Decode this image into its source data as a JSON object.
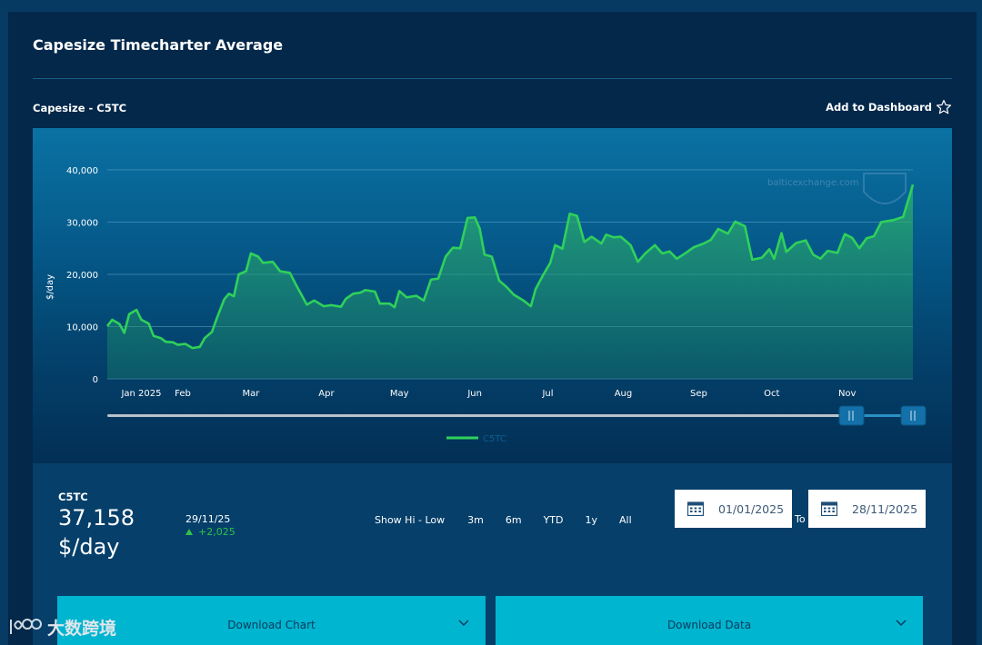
{
  "page": {
    "title": "Capesize Timecharter Average",
    "subtitle": "Capesize - C5TC",
    "add_to_dashboard": "Add to Dashboard"
  },
  "chart_data": {
    "type": "area",
    "ylabel": "$/day",
    "ylim": [
      0,
      40000
    ],
    "yticks": [
      0,
      10000,
      20000,
      30000,
      40000
    ],
    "ytick_labels": [
      "0",
      "10,000",
      "20,000",
      "30,000",
      "40,000"
    ],
    "xlim": [
      "2025-01-01",
      "2025-11-28"
    ],
    "xticks": [
      {
        "date": "2025-01-15",
        "label": "Jan 2025"
      },
      {
        "date": "2025-02-01",
        "label": "Feb"
      },
      {
        "date": "2025-03-01",
        "label": "Mar"
      },
      {
        "date": "2025-04-01",
        "label": "Apr"
      },
      {
        "date": "2025-05-01",
        "label": "May"
      },
      {
        "date": "2025-06-01",
        "label": "Jun"
      },
      {
        "date": "2025-07-01",
        "label": "Jul"
      },
      {
        "date": "2025-08-01",
        "label": "Aug"
      },
      {
        "date": "2025-09-01",
        "label": "Sep"
      },
      {
        "date": "2025-10-01",
        "label": "Oct"
      },
      {
        "date": "2025-11-01",
        "label": "Nov"
      }
    ],
    "grid": true,
    "legend_position": "bottom",
    "series": [
      {
        "name": "C5TC",
        "color": "#2fd15a",
        "points": [
          [
            "2025-01-01",
            10100
          ],
          [
            "2025-01-03",
            11300
          ],
          [
            "2025-01-06",
            10500
          ],
          [
            "2025-01-08",
            8800
          ],
          [
            "2025-01-10",
            12400
          ],
          [
            "2025-01-13",
            13200
          ],
          [
            "2025-01-15",
            11300
          ],
          [
            "2025-01-18",
            10600
          ],
          [
            "2025-01-20",
            8200
          ],
          [
            "2025-01-23",
            7800
          ],
          [
            "2025-01-25",
            7100
          ],
          [
            "2025-01-28",
            7000
          ],
          [
            "2025-01-30",
            6500
          ],
          [
            "2025-02-02",
            6700
          ],
          [
            "2025-02-05",
            5900
          ],
          [
            "2025-02-08",
            6100
          ],
          [
            "2025-02-10",
            7800
          ],
          [
            "2025-02-13",
            9000
          ],
          [
            "2025-02-15",
            11600
          ],
          [
            "2025-02-18",
            15200
          ],
          [
            "2025-02-20",
            16300
          ],
          [
            "2025-02-22",
            15800
          ],
          [
            "2025-02-24",
            20000
          ],
          [
            "2025-02-27",
            20600
          ],
          [
            "2025-03-01",
            24000
          ],
          [
            "2025-03-04",
            23400
          ],
          [
            "2025-03-06",
            22200
          ],
          [
            "2025-03-10",
            22400
          ],
          [
            "2025-03-13",
            20600
          ],
          [
            "2025-03-17",
            20300
          ],
          [
            "2025-03-20",
            17600
          ],
          [
            "2025-03-24",
            14200
          ],
          [
            "2025-03-27",
            15000
          ],
          [
            "2025-03-31",
            13900
          ],
          [
            "2025-04-03",
            14100
          ],
          [
            "2025-04-07",
            13800
          ],
          [
            "2025-04-09",
            15300
          ],
          [
            "2025-04-12",
            16300
          ],
          [
            "2025-04-15",
            16500
          ],
          [
            "2025-04-17",
            17000
          ],
          [
            "2025-04-21",
            16700
          ],
          [
            "2025-04-23",
            14400
          ],
          [
            "2025-04-27",
            14400
          ],
          [
            "2025-04-29",
            13700
          ],
          [
            "2025-05-01",
            16800
          ],
          [
            "2025-05-04",
            15600
          ],
          [
            "2025-05-08",
            15900
          ],
          [
            "2025-05-11",
            15000
          ],
          [
            "2025-05-14",
            19000
          ],
          [
            "2025-05-17",
            19200
          ],
          [
            "2025-05-20",
            23400
          ],
          [
            "2025-05-23",
            25100
          ],
          [
            "2025-05-26",
            25000
          ],
          [
            "2025-05-29",
            30800
          ],
          [
            "2025-06-01",
            30900
          ],
          [
            "2025-06-03",
            28800
          ],
          [
            "2025-06-05",
            23800
          ],
          [
            "2025-06-08",
            23400
          ],
          [
            "2025-06-11",
            18800
          ],
          [
            "2025-06-14",
            17600
          ],
          [
            "2025-06-17",
            16100
          ],
          [
            "2025-06-21",
            15000
          ],
          [
            "2025-06-24",
            13900
          ],
          [
            "2025-06-26",
            17200
          ],
          [
            "2025-06-29",
            19800
          ],
          [
            "2025-07-02",
            22200
          ],
          [
            "2025-07-04",
            25600
          ],
          [
            "2025-07-07",
            24900
          ],
          [
            "2025-07-10",
            31600
          ],
          [
            "2025-07-13",
            31200
          ],
          [
            "2025-07-16",
            26200
          ],
          [
            "2025-07-19",
            27200
          ],
          [
            "2025-07-23",
            25900
          ],
          [
            "2025-07-25",
            27600
          ],
          [
            "2025-07-28",
            27100
          ],
          [
            "2025-07-31",
            27200
          ],
          [
            "2025-08-04",
            25600
          ],
          [
            "2025-08-07",
            22400
          ],
          [
            "2025-08-10",
            24000
          ],
          [
            "2025-08-14",
            25600
          ],
          [
            "2025-08-17",
            24000
          ],
          [
            "2025-08-20",
            24400
          ],
          [
            "2025-08-23",
            23000
          ],
          [
            "2025-08-27",
            24200
          ],
          [
            "2025-08-30",
            25200
          ],
          [
            "2025-09-03",
            25900
          ],
          [
            "2025-09-06",
            26600
          ],
          [
            "2025-09-09",
            28700
          ],
          [
            "2025-09-13",
            27800
          ],
          [
            "2025-09-16",
            30100
          ],
          [
            "2025-09-20",
            29200
          ],
          [
            "2025-09-23",
            22800
          ],
          [
            "2025-09-27",
            23200
          ],
          [
            "2025-09-30",
            24800
          ],
          [
            "2025-10-02",
            23000
          ],
          [
            "2025-10-05",
            27900
          ],
          [
            "2025-10-07",
            24300
          ],
          [
            "2025-10-11",
            26000
          ],
          [
            "2025-10-15",
            26500
          ],
          [
            "2025-10-18",
            23800
          ],
          [
            "2025-10-21",
            23000
          ],
          [
            "2025-10-24",
            24500
          ],
          [
            "2025-10-28",
            24100
          ],
          [
            "2025-10-31",
            27700
          ],
          [
            "2025-11-03",
            27000
          ],
          [
            "2025-11-06",
            25000
          ],
          [
            "2025-11-09",
            26900
          ],
          [
            "2025-11-12",
            27300
          ],
          [
            "2025-11-15",
            30000
          ],
          [
            "2025-11-20",
            30400
          ],
          [
            "2025-11-24",
            31000
          ],
          [
            "2025-11-28",
            37158
          ]
        ]
      }
    ],
    "watermark_text": "balticexchange.com"
  },
  "summary": {
    "index_label": "C5TC",
    "value": "37,158",
    "unit": "$/day",
    "date": "29/11/25",
    "change": "+2,025",
    "change_color": "#2fc24a"
  },
  "controls": {
    "show_hi_low": "Show Hi - Low",
    "ranges": [
      "3m",
      "6m",
      "YTD",
      "1y",
      "All"
    ],
    "from_date": "01/01/2025",
    "to_label": "To",
    "to_date": "28/11/2025",
    "download_chart": "Download Chart",
    "download_data": "Download Data"
  },
  "colors": {
    "line": "#2fd15a",
    "button": "#00b5cf",
    "panel": "#03284a"
  },
  "corner_watermark": "大数跨境"
}
